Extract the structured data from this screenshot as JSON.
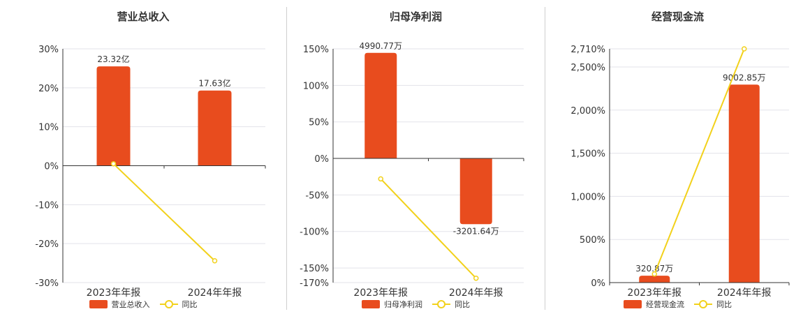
{
  "colors": {
    "bar": "#e84c1e",
    "line": "#f2d11b",
    "grid": "#e3e3ea",
    "axis": "#333333"
  },
  "chart_data": [
    {
      "type": "bar",
      "title": "营业总收入",
      "categories": [
        "2023年年报",
        "2024年年报"
      ],
      "series": [
        {
          "name": "营业总收入",
          "type": "bar",
          "values": [
            25.5,
            19.3
          ],
          "labels": [
            "23.32亿",
            "17.63亿"
          ]
        },
        {
          "name": "同比",
          "type": "line",
          "values": [
            0.5,
            -24.4
          ]
        }
      ],
      "ylim": [
        -30,
        30
      ],
      "yticks": [
        -30,
        -20,
        -10,
        0,
        10,
        20,
        30
      ],
      "ytick_labels": [
        "-30%",
        "-20%",
        "-10%",
        "0%",
        "10%",
        "20%",
        "30%"
      ],
      "grid": true,
      "legend": "bottom"
    },
    {
      "type": "bar",
      "title": "归母净利润",
      "categories": [
        "2023年年报",
        "2024年年报"
      ],
      "series": [
        {
          "name": "归母净利润",
          "type": "bar",
          "values": [
            144.5,
            -90.0
          ],
          "labels": [
            "4990.77万",
            "-3201.64万"
          ]
        },
        {
          "name": "同比",
          "type": "line",
          "values": [
            -28,
            -164
          ]
        }
      ],
      "ylim": [
        -170,
        150
      ],
      "yticks": [
        -170,
        -150,
        -100,
        -50,
        0,
        50,
        100,
        150
      ],
      "ytick_labels": [
        "-170%",
        "-150%",
        "-100%",
        "-50%",
        "0%",
        "50%",
        "100%",
        "150%"
      ],
      "grid": true,
      "legend": "bottom"
    },
    {
      "type": "bar",
      "title": "经营现金流",
      "categories": [
        "2023年年报",
        "2024年年报"
      ],
      "series": [
        {
          "name": "经营现金流",
          "type": "bar",
          "values": [
            80,
            2295
          ],
          "labels": [
            "320.87万",
            "9002.85万"
          ]
        },
        {
          "name": "同比",
          "type": "line",
          "values": [
            100,
            2710
          ]
        }
      ],
      "ylim": [
        0,
        2710
      ],
      "yticks": [
        0,
        500,
        1000,
        1500,
        2000,
        2500,
        2710
      ],
      "ytick_labels": [
        "0%",
        "500%",
        "1,000%",
        "1,500%",
        "2,000%",
        "2,500%",
        "2,710%"
      ],
      "grid": true,
      "legend": "bottom"
    }
  ]
}
